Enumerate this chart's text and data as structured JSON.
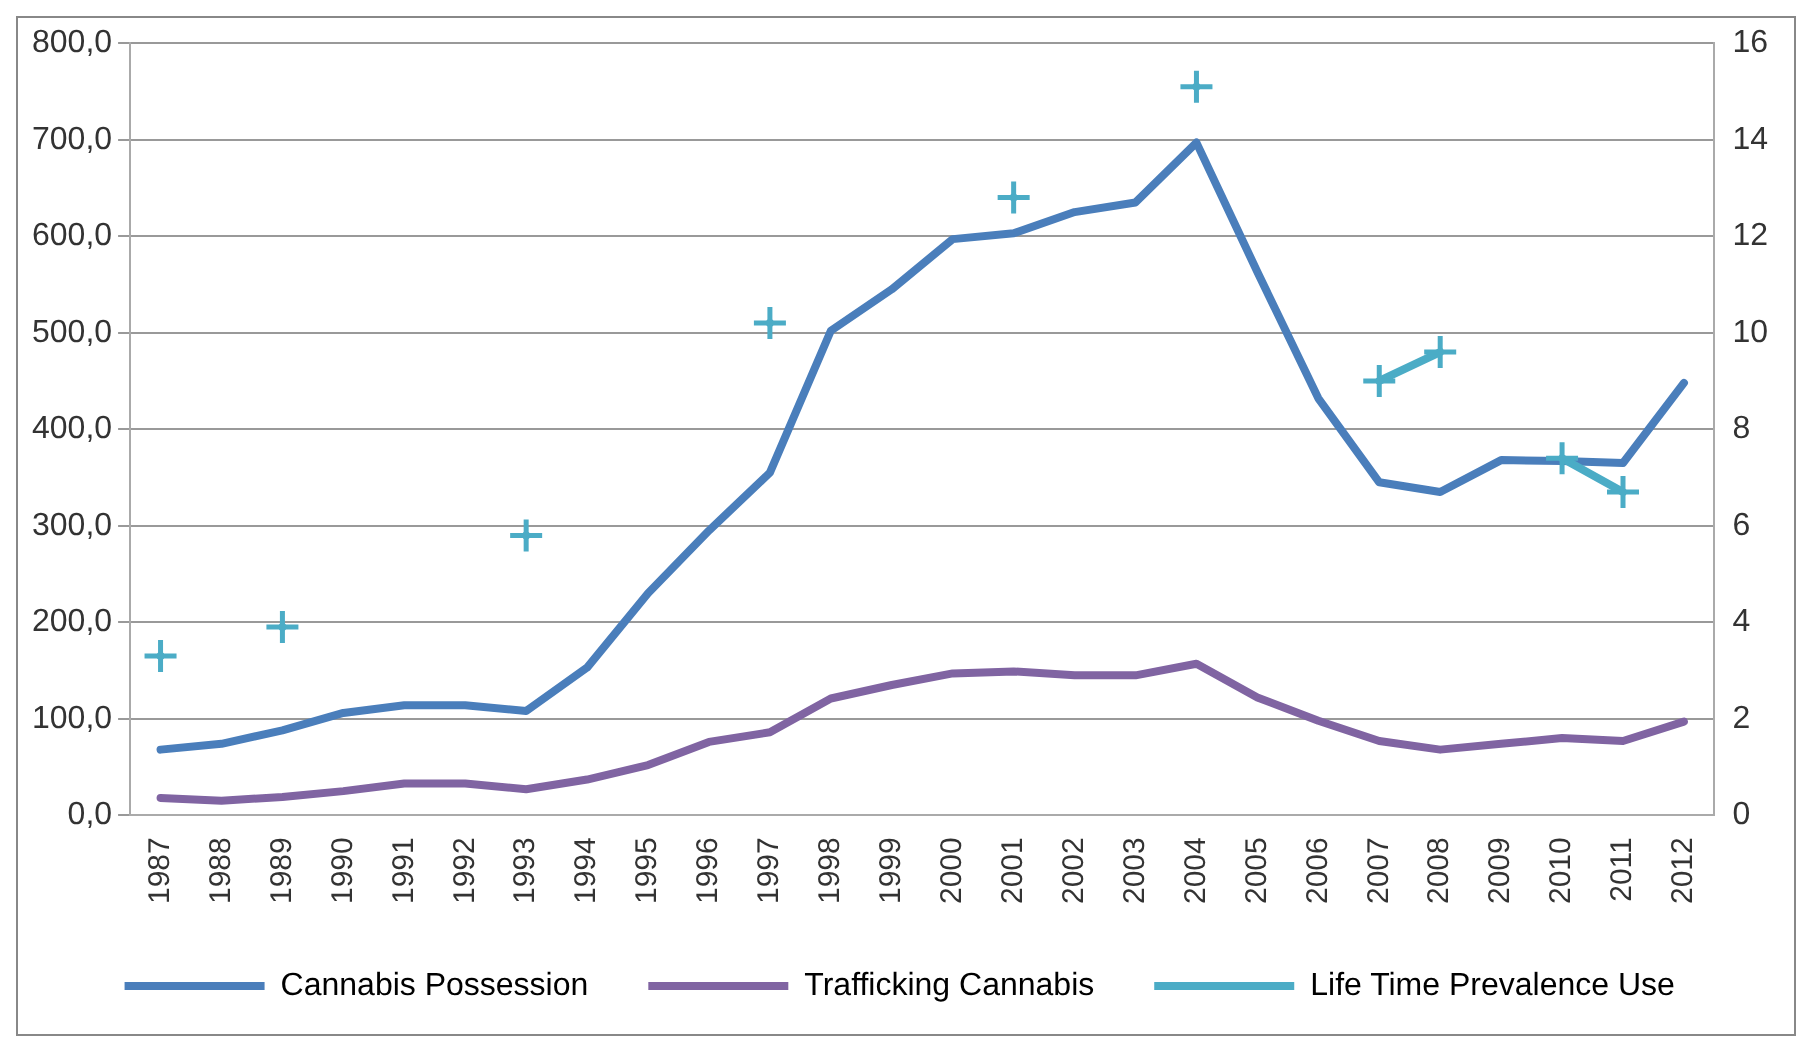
{
  "chart_data": {
    "type": "line",
    "categories": [
      "1987",
      "1988",
      "1989",
      "1990",
      "1991",
      "1992",
      "1993",
      "1994",
      "1995",
      "1996",
      "1997",
      "1998",
      "1999",
      "2000",
      "2001",
      "2002",
      "2003",
      "2004",
      "2005",
      "2006",
      "2007",
      "2008",
      "2009",
      "2010",
      "2011",
      "2012"
    ],
    "series": [
      {
        "name": "Cannabis Possession",
        "color": "#4a7ebb",
        "marker": "none",
        "values": [
          68,
          74,
          88,
          106,
          114,
          114,
          108,
          153,
          230,
          295,
          355,
          502,
          545,
          597,
          603,
          625,
          635,
          697,
          563,
          432,
          345,
          335,
          368,
          367,
          365,
          448
        ]
      },
      {
        "name": "Trafficking Cannabis",
        "color": "#8064a2",
        "marker": "none",
        "values": [
          18,
          15,
          19,
          25,
          33,
          33,
          27,
          37,
          52,
          76,
          86,
          121,
          135,
          147,
          149,
          145,
          145,
          157,
          122,
          98,
          77,
          68,
          74,
          80,
          77,
          97
        ]
      },
      {
        "name": "Life Time Prevalence Use",
        "color": "#4bacc6",
        "marker": "cross",
        "axis": "y2",
        "values": [
          3.3,
          null,
          3.9,
          null,
          null,
          null,
          5.8,
          null,
          null,
          null,
          10.2,
          null,
          null,
          null,
          12.8,
          null,
          null,
          15.1,
          null,
          null,
          9.0,
          9.6,
          null,
          7.4,
          6.7,
          null
        ]
      }
    ],
    "ylim": [
      0,
      800
    ],
    "yticks": [
      {
        "value": 0,
        "label": "0,0"
      },
      {
        "value": 100,
        "label": "100,0"
      },
      {
        "value": 200,
        "label": "200,0"
      },
      {
        "value": 300,
        "label": "300,0"
      },
      {
        "value": 400,
        "label": "400,0"
      },
      {
        "value": 500,
        "label": "500,0"
      },
      {
        "value": 600,
        "label": "600,0"
      },
      {
        "value": 700,
        "label": "700,0"
      },
      {
        "value": 800,
        "label": "800,0"
      }
    ],
    "y2lim": [
      0,
      16
    ],
    "y2ticks": [
      0,
      2,
      4,
      6,
      8,
      10,
      12,
      14,
      16
    ],
    "grid": "y",
    "legend": "bottom"
  }
}
